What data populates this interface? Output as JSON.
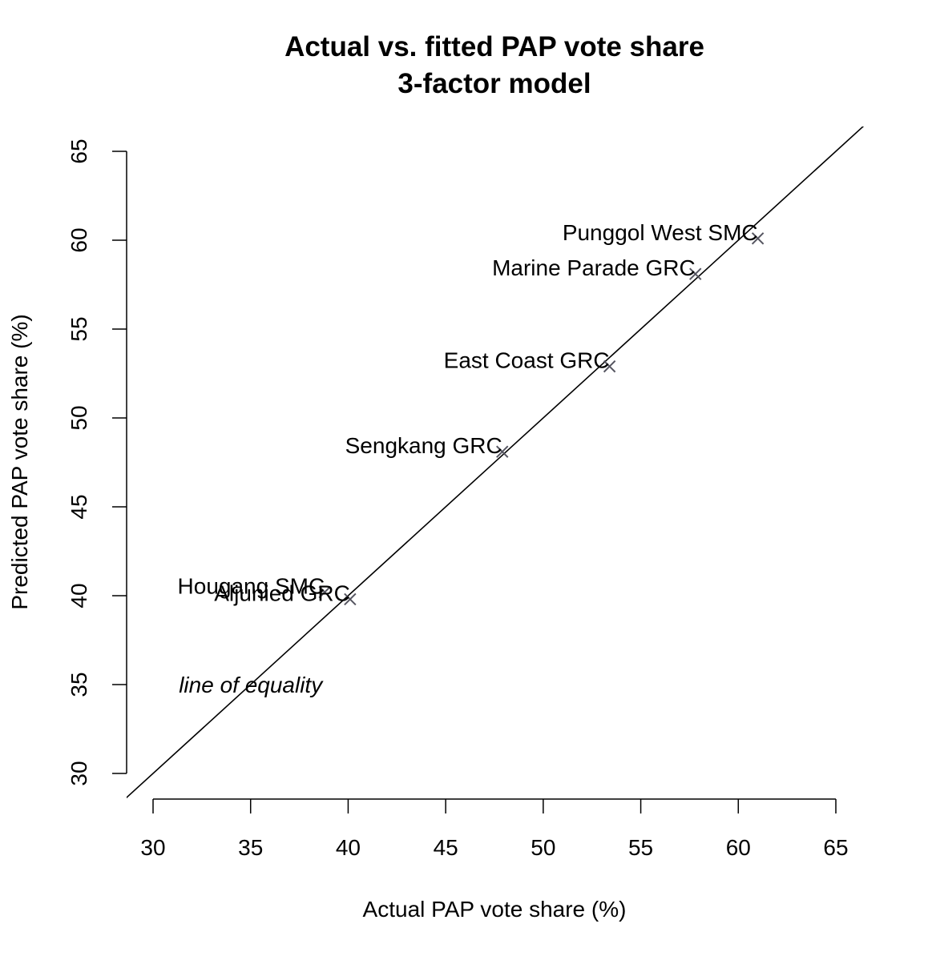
{
  "chart_data": {
    "type": "scatter",
    "title": "Actual vs. fitted PAP vote share",
    "subtitle": "3-factor model",
    "xlabel": "Actual PAP vote share (%)",
    "ylabel": "Predicted PAP vote share (%)",
    "xlim": [
      30,
      65
    ],
    "ylim": [
      30,
      65
    ],
    "xticks": [
      30,
      35,
      40,
      45,
      50,
      55,
      60,
      65
    ],
    "yticks": [
      30,
      35,
      40,
      45,
      50,
      55,
      60,
      65
    ],
    "grid": false,
    "legend": "none",
    "marker": "x",
    "marker_color": "#555560",
    "points": [
      {
        "label": "Punggol West SMC",
        "x": 61.0,
        "y": 60.1
      },
      {
        "label": "Marine Parade GRC",
        "x": 57.8,
        "y": 58.1
      },
      {
        "label": "East Coast GRC",
        "x": 53.4,
        "y": 52.9
      },
      {
        "label": "Sengkang GRC",
        "x": 47.9,
        "y": 48.1
      },
      {
        "label": "Hougang SMC",
        "x": 38.8,
        "y": 40.2
      },
      {
        "label": "Aljunied GRC",
        "x": 40.1,
        "y": 39.8
      }
    ],
    "reference_line": {
      "label": "line of equality",
      "slope": 1,
      "intercept": 0,
      "label_at": [
        35,
        35
      ]
    }
  }
}
